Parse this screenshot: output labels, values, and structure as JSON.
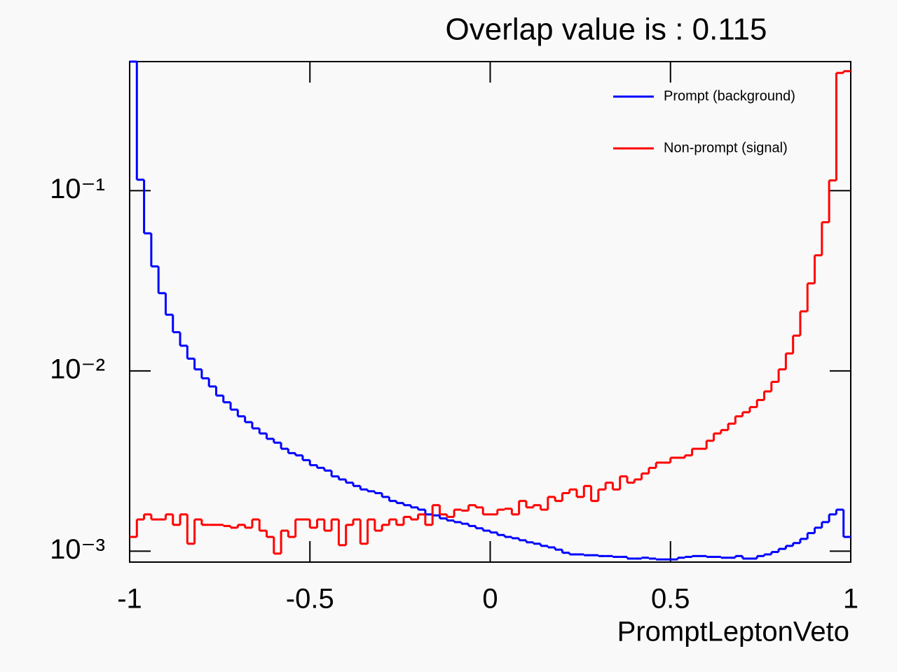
{
  "chart_data": {
    "type": "histogram",
    "title": "Overlap value is : 0.115",
    "xlabel": "PromptLeptonVeto",
    "bins": [
      -1,
      -0.98,
      -0.96,
      -0.94,
      -0.92,
      -0.9,
      -0.88,
      -0.86,
      -0.84,
      -0.82,
      -0.8,
      -0.78,
      -0.76,
      -0.74,
      -0.72,
      -0.7,
      -0.68,
      -0.66,
      -0.64,
      -0.62,
      -0.6,
      -0.58,
      -0.56,
      -0.54,
      -0.52,
      -0.5,
      -0.48,
      -0.46,
      -0.44,
      -0.42,
      -0.4,
      -0.38,
      -0.36,
      -0.34,
      -0.32,
      -0.3,
      -0.28,
      -0.26,
      -0.24,
      -0.22,
      -0.2,
      -0.18,
      -0.16,
      -0.14,
      -0.12,
      -0.1,
      -0.08,
      -0.06,
      -0.04,
      -0.02,
      0,
      0.02,
      0.04,
      0.06,
      0.08,
      0.1,
      0.12,
      0.14,
      0.16,
      0.18,
      0.2,
      0.22,
      0.24,
      0.26,
      0.28,
      0.3,
      0.32,
      0.34,
      0.36,
      0.38,
      0.4,
      0.42,
      0.44,
      0.46,
      0.48,
      0.5,
      0.52,
      0.54,
      0.56,
      0.58,
      0.6,
      0.62,
      0.64,
      0.66,
      0.68,
      0.7,
      0.72,
      0.74,
      0.76,
      0.78,
      0.8,
      0.82,
      0.84,
      0.86,
      0.88,
      0.9,
      0.92,
      0.94,
      0.96,
      0.98,
      1
    ],
    "series": [
      {
        "name": "Prompt (background)",
        "color": "#0000ff",
        "values": [
          0.52,
          0.115,
          0.058,
          0.038,
          0.027,
          0.0205,
          0.0164,
          0.0138,
          0.0117,
          0.0102,
          0.0091,
          0.0082,
          0.0073,
          0.0067,
          0.0061,
          0.0056,
          0.0052,
          0.0048,
          0.0045,
          0.0042,
          0.004,
          0.0037,
          0.0035,
          0.0034,
          0.0032,
          0.003,
          0.0029,
          0.0028,
          0.0026,
          0.0025,
          0.0024,
          0.0023,
          0.0022,
          0.00215,
          0.0021,
          0.002,
          0.0019,
          0.00185,
          0.0018,
          0.00175,
          0.0017,
          0.0016,
          0.00158,
          0.00152,
          0.00148,
          0.00145,
          0.00142,
          0.00138,
          0.00134,
          0.0013,
          0.00127,
          0.00123,
          0.0012,
          0.00118,
          0.00115,
          0.00112,
          0.0011,
          0.00107,
          0.00105,
          0.00102,
          0.00098,
          0.00096,
          0.00096,
          0.00095,
          0.00095,
          0.00094,
          0.00094,
          0.00093,
          0.00093,
          0.00091,
          0.00091,
          0.00092,
          0.00091,
          0.0009,
          0.0009,
          0.0009,
          0.00092,
          0.00093,
          0.00094,
          0.00094,
          0.00093,
          0.00093,
          0.00092,
          0.00092,
          0.00094,
          0.00091,
          0.00091,
          0.00094,
          0.00096,
          0.00099,
          0.00103,
          0.00107,
          0.00111,
          0.00117,
          0.00126,
          0.00135,
          0.00145,
          0.0016,
          0.0017,
          0.0012
        ]
      },
      {
        "name": "Non-prompt (signal)",
        "color": "#ff0000",
        "values": [
          0.0012,
          0.0015,
          0.0016,
          0.0015,
          0.0015,
          0.0016,
          0.0014,
          0.0016,
          0.0011,
          0.0015,
          0.0014,
          0.0014,
          0.0014,
          0.00138,
          0.00135,
          0.0014,
          0.00135,
          0.0015,
          0.0013,
          0.0012,
          0.00097,
          0.0013,
          0.0012,
          0.0015,
          0.0015,
          0.00135,
          0.0015,
          0.0013,
          0.0015,
          0.00108,
          0.0014,
          0.0015,
          0.0011,
          0.0015,
          0.0013,
          0.0014,
          0.0015,
          0.0014,
          0.00155,
          0.0015,
          0.0016,
          0.0014,
          0.0018,
          0.0016,
          0.00155,
          0.0017,
          0.00168,
          0.0018,
          0.00175,
          0.0016,
          0.0016,
          0.0017,
          0.00172,
          0.0016,
          0.0019,
          0.00175,
          0.0018,
          0.0017,
          0.002,
          0.0019,
          0.0021,
          0.0022,
          0.002,
          0.0023,
          0.0019,
          0.0022,
          0.0024,
          0.0022,
          0.0026,
          0.0024,
          0.0025,
          0.0027,
          0.0029,
          0.0031,
          0.0031,
          0.0033,
          0.0033,
          0.0034,
          0.0037,
          0.0037,
          0.0041,
          0.0045,
          0.0047,
          0.0051,
          0.0056,
          0.0059,
          0.0063,
          0.0069,
          0.0077,
          0.0087,
          0.0102,
          0.0125,
          0.0157,
          0.0214,
          0.0306,
          0.0438,
          0.0668,
          0.114,
          0.45,
          0.46
        ]
      }
    ],
    "xlim": [
      -1,
      1
    ],
    "xticks": [
      -1,
      -0.5,
      0,
      0.5,
      1
    ],
    "ylim": [
      0.00087,
      0.52
    ],
    "log_y": true,
    "yticks": [
      {
        "value": 0.001,
        "label": "10⁻³"
      },
      {
        "value": 0.01,
        "label": "10⁻²"
      },
      {
        "value": 0.1,
        "label": "10⁻¹"
      }
    ],
    "legend": "upper right"
  }
}
